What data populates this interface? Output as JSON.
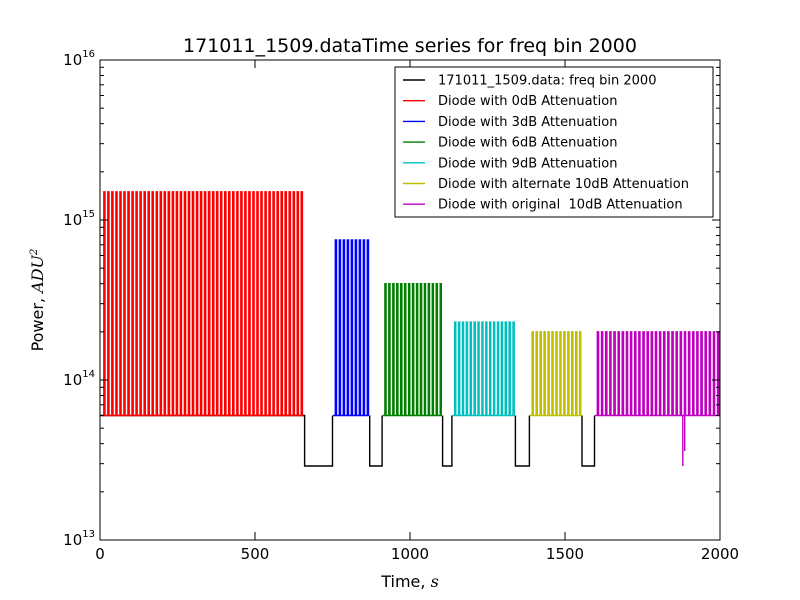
{
  "chart_data": {
    "type": "line",
    "title": "171011_1509.dataTime series for freq bin 2000",
    "xlabel": "Time, s",
    "xlabel_text": "Time,",
    "xlabel_unit": "s",
    "ylabel": "Power, ADU²",
    "ylabel_text": "Power,",
    "ylabel_unit": "ADU",
    "ylabel_unit_exp": "2",
    "xlim": [
      0,
      2000
    ],
    "ylim": [
      10000000000000.0,
      1e+16
    ],
    "yscale": "log",
    "grid": false,
    "legend_position": "top-right",
    "x_ticks": [
      {
        "value": 0,
        "label": "0"
      },
      {
        "value": 500,
        "label": "500"
      },
      {
        "value": 1000,
        "label": "1000"
      },
      {
        "value": 1500,
        "label": "1500"
      },
      {
        "value": 2000,
        "label": "2000"
      }
    ],
    "y_ticks": [
      {
        "value": 10000000000000.0,
        "base": "10",
        "exp": "13"
      },
      {
        "value": 100000000000000.0,
        "base": "10",
        "exp": "14"
      },
      {
        "value": 1000000000000000.0,
        "base": "10",
        "exp": "15"
      },
      {
        "value": 1e+16,
        "base": "10",
        "exp": "16"
      }
    ],
    "series": [
      {
        "name": "171011_1509.data: freq bin 2000",
        "color": "#000000",
        "segments": [
          {
            "x": [
              0,
              660,
              660,
              750,
              750
            ],
            "y": [
              60000000000000.0,
              60000000000000.0,
              29000000000000.0,
              29000000000000.0,
              60000000000000.0
            ]
          },
          {
            "x": [
              870,
              870,
              910,
              910
            ],
            "y": [
              60000000000000.0,
              29000000000000.0,
              29000000000000.0,
              60000000000000.0
            ]
          },
          {
            "x": [
              1105,
              1105,
              1135,
              1135
            ],
            "y": [
              60000000000000.0,
              29000000000000.0,
              29000000000000.0,
              60000000000000.0
            ]
          },
          {
            "x": [
              1340,
              1340,
              1385,
              1385
            ],
            "y": [
              60000000000000.0,
              29000000000000.0,
              29000000000000.0,
              60000000000000.0
            ]
          },
          {
            "x": [
              1555,
              1555,
              1595,
              1595
            ],
            "y": [
              60000000000000.0,
              29000000000000.0,
              29000000000000.0,
              60000000000000.0
            ]
          }
        ]
      },
      {
        "name": "Diode with 0dB Attenuation",
        "color": "#ff0000",
        "x_start": 5,
        "x_end": 655,
        "low": 60000000000000.0,
        "high": 1500000000000000.0,
        "pulses": 50
      },
      {
        "name": "Diode with 3dB Attenuation",
        "color": "#0000ff",
        "x_start": 752,
        "x_end": 868,
        "low": 60000000000000.0,
        "high": 750000000000000.0,
        "pulses": 9
      },
      {
        "name": "Diode with 6dB Attenuation",
        "color": "#008000",
        "x_start": 912,
        "x_end": 1103,
        "low": 60000000000000.0,
        "high": 400000000000000.0,
        "pulses": 15
      },
      {
        "name": "Diode with 9dB Attenuation",
        "color": "#00bfbf",
        "x_start": 1137,
        "x_end": 1338,
        "low": 60000000000000.0,
        "high": 230000000000000.0,
        "pulses": 16
      },
      {
        "name": "Diode with alternate 10dB Attenuation",
        "color": "#bfbf00",
        "x_start": 1387,
        "x_end": 1553,
        "low": 60000000000000.0,
        "high": 200000000000000.0,
        "pulses": 13
      },
      {
        "name": "Diode with original  10dB Attenuation",
        "color": "#bf00bf",
        "x_start": 1597,
        "x_end": 1998,
        "low": 60000000000000.0,
        "high": 200000000000000.0,
        "pulses": 30,
        "dips": [
          {
            "x": 1880,
            "y": 29000000000000.0
          },
          {
            "x": 1886,
            "y": 36000000000000.0
          }
        ]
      }
    ]
  }
}
